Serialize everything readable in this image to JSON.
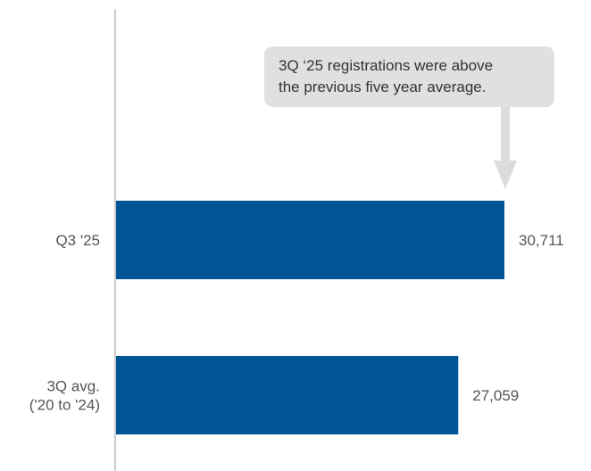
{
  "chart_data": {
    "type": "bar",
    "orientation": "horizontal",
    "categories": [
      "Q3 '25",
      "3Q avg.\n('20 to '24)"
    ],
    "values": [
      30711,
      27059
    ],
    "value_labels": [
      "30,711",
      "27,059"
    ],
    "xlim": [
      0,
      34500
    ],
    "grid": false,
    "bar_color": "#005596",
    "annotation": {
      "text": "3Q ‘25 registrations were above\nthe previous five year average.",
      "target_category_index": 0,
      "box_color": "#e0e0e0",
      "arrow_color": "#dcdcdc"
    }
  }
}
